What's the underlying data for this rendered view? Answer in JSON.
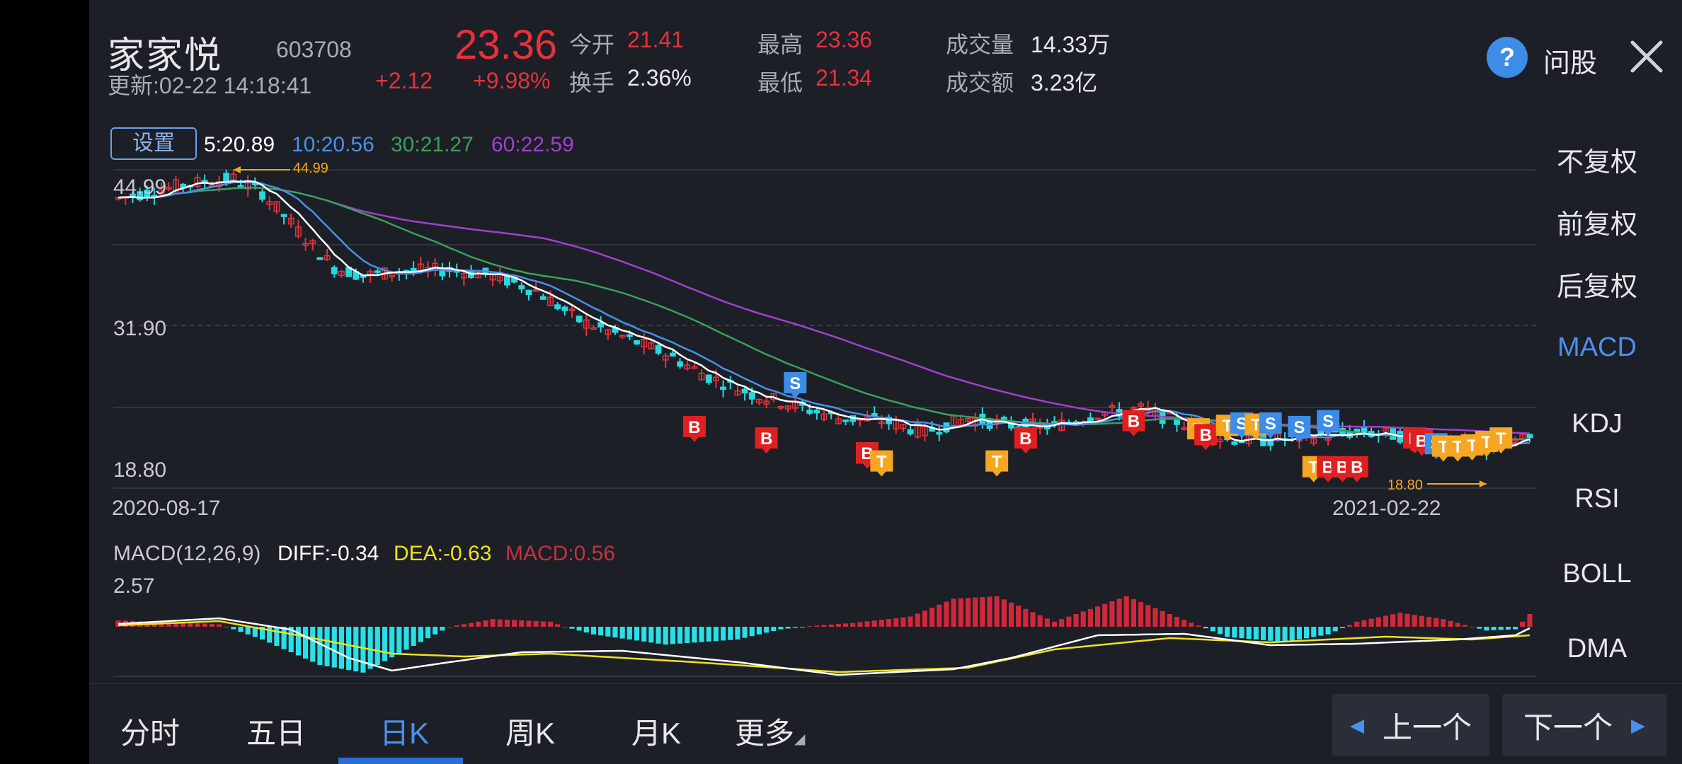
{
  "header": {
    "stock_name": "家家悦",
    "stock_code": "603708",
    "update_time": "更新:02-22 14:18:41",
    "price": "23.36",
    "change": "+2.12",
    "change_pct": "+9.98%",
    "open_label": "今开",
    "open_value": "21.41",
    "turnover_label": "换手",
    "turnover_value": "2.36%",
    "high_label": "最高",
    "high_value": "23.36",
    "low_label": "最低",
    "low_value": "21.34",
    "volume_label": "成交量",
    "volume_value": "14.33万",
    "amount_label": "成交额",
    "amount_value": "3.23亿",
    "help_label": "问股"
  },
  "chart": {
    "settings_label": "设置",
    "ma5": "5:20.89",
    "ma10": "10:20.56",
    "ma30": "30:21.27",
    "ma60": "60:22.59",
    "y_top": "44.99",
    "y_mid": "31.90",
    "y_bottom": "18.80",
    "max_marker": "44.99",
    "min_marker": "18.80",
    "date_start": "2020-08-17",
    "date_end": "2021-02-22",
    "signal_labels": [
      "B",
      "S",
      "T"
    ],
    "colors": {
      "up": "#e8303d",
      "down": "#26d8e0",
      "ma5": "#ffffff",
      "ma10": "#4a90e8",
      "ma30": "#3aa05a",
      "ma60": "#a040d0",
      "buy": "#e02020",
      "sell": "#3c8ce8",
      "t": "#f5a623"
    }
  },
  "macd": {
    "title": "MACD(12,26,9)",
    "diff": "DIFF:-0.34",
    "dea": "DEA:-0.63",
    "macd": "MACD:0.56",
    "y_top": "2.57"
  },
  "right_menu": [
    {
      "label": "不复权",
      "active": false
    },
    {
      "label": "前复权",
      "active": false
    },
    {
      "label": "后复权",
      "active": false
    },
    {
      "label": "MACD",
      "active": true
    },
    {
      "label": "KDJ",
      "active": false
    },
    {
      "label": "RSI",
      "active": false
    },
    {
      "label": "BOLL",
      "active": false
    },
    {
      "label": "DMA",
      "active": false
    }
  ],
  "tabs": [
    {
      "label": "分时"
    },
    {
      "label": "五日"
    },
    {
      "label": "日K"
    },
    {
      "label": "周K"
    },
    {
      "label": "月K"
    },
    {
      "label": "更多"
    }
  ],
  "nav": {
    "prev_label": "上一个",
    "next_label": "下一个"
  }
}
